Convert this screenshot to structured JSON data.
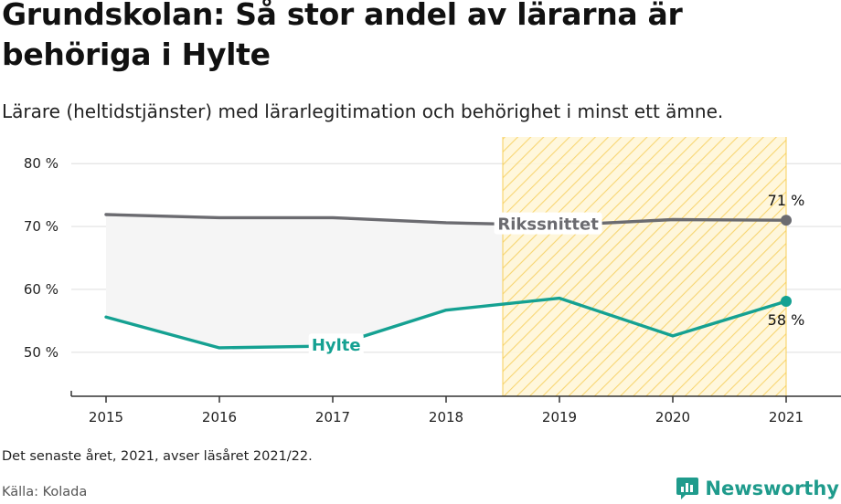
{
  "header": {
    "title": "Grundskolan: Så stor andel av lärarna är behöriga i Hylte",
    "subtitle": "Lärare (heltidstjänster) med lärarlegitimation och behörighet i minst ett ämne."
  },
  "footer": {
    "note": "Det senaste året, 2021, avser läsåret 2021/22.",
    "source": "Källa: Kolada",
    "brand": "Newsworthy"
  },
  "colors": {
    "hylte": "#15a192",
    "riks": "#6b6b70",
    "band": "#f5f5f5",
    "highlight_fill": "#fff6d6",
    "highlight_hatch": "#f7cf5a",
    "grid": "#e2e2e2",
    "axis": "#333333"
  },
  "chart_data": {
    "type": "line",
    "x": [
      2015,
      2016,
      2017,
      2018,
      2019,
      2020,
      2021
    ],
    "ylim": [
      43,
      82.5
    ],
    "yticks": [
      50,
      60,
      70,
      80
    ],
    "ytick_labels": [
      "50 %",
      "60 %",
      "70 %",
      "80 %"
    ],
    "grid": true,
    "highlight_range": [
      2018.5,
      2021
    ],
    "series": [
      {
        "name": "Rikssnittet",
        "values": [
          71.9,
          71.4,
          71.4,
          70.6,
          70.2,
          71.1,
          71.0
        ]
      },
      {
        "name": "Hylte",
        "values": [
          55.6,
          50.7,
          51.0,
          56.7,
          58.6,
          52.6,
          58.1
        ]
      }
    ],
    "end_labels": {
      "Rikssnittet": "71 %",
      "Hylte": "58 %"
    }
  }
}
